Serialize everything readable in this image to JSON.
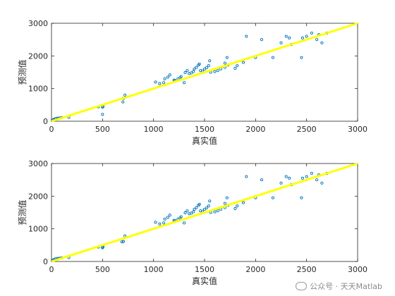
{
  "chart_data": [
    {
      "type": "scatter",
      "xlabel": "真实值",
      "ylabel": "预测值",
      "xlim": [
        0,
        3000
      ],
      "ylim": [
        0,
        3000
      ],
      "xticks": [
        0,
        500,
        1000,
        1500,
        2000,
        2500,
        3000
      ],
      "yticks": [
        0,
        1000,
        2000,
        3000
      ],
      "grid": false,
      "colors": {
        "points": "#0072BD",
        "fit_line": "#FFFF00"
      },
      "fit_line": {
        "x": [
          0,
          3000
        ],
        "y": [
          0,
          3000
        ]
      },
      "points": [
        [
          8,
          20
        ],
        [
          15,
          40
        ],
        [
          25,
          60
        ],
        [
          40,
          80
        ],
        [
          55,
          90
        ],
        [
          70,
          95
        ],
        [
          85,
          100
        ],
        [
          100,
          110
        ],
        [
          170,
          120
        ],
        [
          460,
          440
        ],
        [
          500,
          430
        ],
        [
          505,
          450
        ],
        [
          500,
          210
        ],
        [
          700,
          590
        ],
        [
          705,
          700
        ],
        [
          720,
          800
        ],
        [
          1020,
          1200
        ],
        [
          1060,
          1150
        ],
        [
          1100,
          1180
        ],
        [
          1110,
          1300
        ],
        [
          1140,
          1350
        ],
        [
          1160,
          1420
        ],
        [
          1200,
          1260
        ],
        [
          1210,
          1250
        ],
        [
          1240,
          1300
        ],
        [
          1260,
          1330
        ],
        [
          1270,
          1370
        ],
        [
          1300,
          1180
        ],
        [
          1310,
          1490
        ],
        [
          1330,
          1550
        ],
        [
          1350,
          1460
        ],
        [
          1370,
          1480
        ],
        [
          1390,
          1520
        ],
        [
          1400,
          1600
        ],
        [
          1420,
          1650
        ],
        [
          1440,
          1720
        ],
        [
          1450,
          1750
        ],
        [
          1460,
          1550
        ],
        [
          1480,
          1540
        ],
        [
          1500,
          1600
        ],
        [
          1520,
          1640
        ],
        [
          1540,
          1700
        ],
        [
          1550,
          1850
        ],
        [
          1560,
          1500
        ],
        [
          1600,
          1520
        ],
        [
          1630,
          1550
        ],
        [
          1660,
          1600
        ],
        [
          1700,
          1650
        ],
        [
          1700,
          1780
        ],
        [
          1720,
          1950
        ],
        [
          1730,
          1720
        ],
        [
          1800,
          1620
        ],
        [
          1820,
          1700
        ],
        [
          1880,
          1800
        ],
        [
          1910,
          2600
        ],
        [
          2000,
          1950
        ],
        [
          2060,
          2500
        ],
        [
          2170,
          1950
        ],
        [
          2250,
          2400
        ],
        [
          2300,
          2600
        ],
        [
          2330,
          2550
        ],
        [
          2350,
          2350
        ],
        [
          2450,
          1950
        ],
        [
          2460,
          2550
        ],
        [
          2500,
          2600
        ],
        [
          2550,
          2700
        ],
        [
          2600,
          2500
        ],
        [
          2620,
          2650
        ],
        [
          2650,
          2400
        ],
        [
          2700,
          2700
        ]
      ]
    },
    {
      "type": "scatter",
      "xlabel": "真实值",
      "ylabel": "预测值",
      "xlim": [
        0,
        3000
      ],
      "ylim": [
        0,
        3000
      ],
      "xticks": [
        0,
        500,
        1000,
        1500,
        2000,
        2500,
        3000
      ],
      "yticks": [
        0,
        1000,
        2000,
        3000
      ],
      "grid": false,
      "colors": {
        "points": "#0072BD",
        "fit_line": "#FFFF00"
      },
      "fit_line": {
        "x": [
          0,
          3000
        ],
        "y": [
          0,
          3000
        ]
      },
      "points": [
        [
          8,
          20
        ],
        [
          15,
          40
        ],
        [
          25,
          60
        ],
        [
          40,
          80
        ],
        [
          55,
          90
        ],
        [
          70,
          95
        ],
        [
          85,
          100
        ],
        [
          100,
          110
        ],
        [
          170,
          120
        ],
        [
          460,
          440
        ],
        [
          500,
          430
        ],
        [
          505,
          450
        ],
        [
          500,
          420
        ],
        [
          690,
          600
        ],
        [
          705,
          610
        ],
        [
          720,
          780
        ],
        [
          1020,
          1200
        ],
        [
          1060,
          1150
        ],
        [
          1100,
          1180
        ],
        [
          1110,
          1300
        ],
        [
          1140,
          1350
        ],
        [
          1160,
          1420
        ],
        [
          1200,
          1260
        ],
        [
          1210,
          1250
        ],
        [
          1240,
          1300
        ],
        [
          1260,
          1330
        ],
        [
          1270,
          1370
        ],
        [
          1300,
          1180
        ],
        [
          1310,
          1490
        ],
        [
          1330,
          1550
        ],
        [
          1350,
          1460
        ],
        [
          1370,
          1480
        ],
        [
          1390,
          1520
        ],
        [
          1400,
          1600
        ],
        [
          1420,
          1650
        ],
        [
          1440,
          1720
        ],
        [
          1450,
          1750
        ],
        [
          1460,
          1550
        ],
        [
          1480,
          1540
        ],
        [
          1500,
          1600
        ],
        [
          1520,
          1640
        ],
        [
          1540,
          1700
        ],
        [
          1550,
          1850
        ],
        [
          1560,
          1500
        ],
        [
          1600,
          1520
        ],
        [
          1630,
          1550
        ],
        [
          1660,
          1600
        ],
        [
          1700,
          1650
        ],
        [
          1700,
          1780
        ],
        [
          1720,
          1950
        ],
        [
          1730,
          1720
        ],
        [
          1800,
          1620
        ],
        [
          1820,
          1700
        ],
        [
          1880,
          1800
        ],
        [
          1910,
          2600
        ],
        [
          2000,
          1950
        ],
        [
          2060,
          2500
        ],
        [
          2170,
          1950
        ],
        [
          2250,
          2400
        ],
        [
          2300,
          2600
        ],
        [
          2330,
          2550
        ],
        [
          2350,
          2350
        ],
        [
          2450,
          1950
        ],
        [
          2460,
          2550
        ],
        [
          2500,
          2600
        ],
        [
          2550,
          2700
        ],
        [
          2600,
          2500
        ],
        [
          2620,
          2650
        ],
        [
          2650,
          2400
        ],
        [
          2700,
          2700
        ]
      ]
    }
  ],
  "watermark": {
    "icon": "wechat-icon",
    "text": "公众号 · 天天Matlab"
  }
}
